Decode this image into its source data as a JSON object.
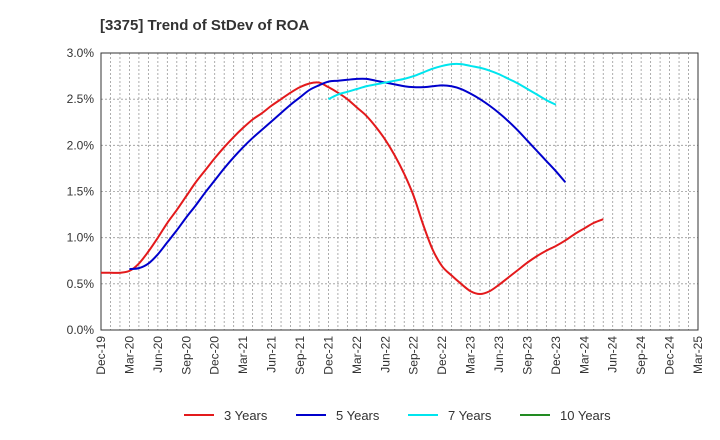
{
  "chart_data": {
    "type": "line",
    "title": "[3375]  Trend of StDev of ROA",
    "xlabel": "",
    "ylabel": "",
    "x_ticks": [
      "Dec-19",
      "Mar-20",
      "Jun-20",
      "Sep-20",
      "Dec-20",
      "Mar-21",
      "Jun-21",
      "Sep-21",
      "Dec-21",
      "Mar-22",
      "Jun-22",
      "Sep-22",
      "Dec-22",
      "Mar-23",
      "Jun-23",
      "Sep-23",
      "Dec-23",
      "Mar-24",
      "Jun-24",
      "Sep-24",
      "Dec-24",
      "Mar-25"
    ],
    "y_ticks": [
      "0.0%",
      "0.5%",
      "1.0%",
      "1.5%",
      "2.0%",
      "2.5%",
      "3.0%"
    ],
    "ylim": [
      0,
      3.0
    ],
    "grid": true,
    "legend_position": "bottom",
    "series": [
      {
        "name": "3 Years",
        "color": "#e31a1c",
        "start_index": 0,
        "values": [
          0.62,
          0.62,
          0.62,
          0.64,
          0.72,
          0.85,
          1.0,
          1.16,
          1.3,
          1.45,
          1.6,
          1.73,
          1.86,
          1.98,
          2.09,
          2.19,
          2.28,
          2.35,
          2.43,
          2.5,
          2.57,
          2.63,
          2.67,
          2.68,
          2.63,
          2.57,
          2.5,
          2.41,
          2.32,
          2.2,
          2.06,
          1.89,
          1.69,
          1.45,
          1.14,
          0.87,
          0.69,
          0.59,
          0.5,
          0.42,
          0.39,
          0.42,
          0.49,
          0.57,
          0.65,
          0.73,
          0.8,
          0.86,
          0.91,
          0.97,
          1.04,
          1.1,
          1.16,
          1.2
        ]
      },
      {
        "name": "5 Years",
        "color": "#0000cc",
        "start_index": 3,
        "values": [
          0.66,
          0.67,
          0.72,
          0.82,
          0.95,
          1.08,
          1.22,
          1.35,
          1.49,
          1.62,
          1.75,
          1.87,
          1.98,
          2.08,
          2.17,
          2.26,
          2.35,
          2.44,
          2.52,
          2.6,
          2.65,
          2.69,
          2.7,
          2.71,
          2.72,
          2.72,
          2.7,
          2.68,
          2.66,
          2.64,
          2.63,
          2.63,
          2.64,
          2.65,
          2.64,
          2.61,
          2.56,
          2.5,
          2.43,
          2.35,
          2.26,
          2.16,
          2.05,
          1.94,
          1.83,
          1.72,
          1.6
        ]
      },
      {
        "name": "7 Years",
        "color": "#00e5ee",
        "start_index": 24,
        "values": [
          2.5,
          2.55,
          2.58,
          2.61,
          2.64,
          2.66,
          2.68,
          2.7,
          2.72,
          2.75,
          2.79,
          2.83,
          2.86,
          2.88,
          2.88,
          2.86,
          2.84,
          2.81,
          2.77,
          2.72,
          2.67,
          2.61,
          2.55,
          2.49,
          2.44
        ]
      },
      {
        "name": "10 Years",
        "color": "#228b22",
        "start_index": 0,
        "values": []
      }
    ]
  }
}
